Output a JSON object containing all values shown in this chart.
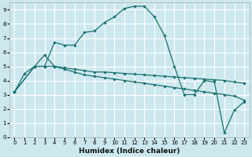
{
  "xlabel": "Humidex (Indice chaleur)",
  "bg_color": "#cce8ee",
  "grid_color": "#ffffff",
  "line_color": "#1a7070",
  "xlim": [
    -0.5,
    23.5
  ],
  "ylim": [
    0,
    9.5
  ],
  "xticks": [
    0,
    1,
    2,
    3,
    4,
    5,
    6,
    7,
    8,
    9,
    10,
    11,
    12,
    13,
    14,
    15,
    16,
    17,
    18,
    19,
    20,
    21,
    22,
    23
  ],
  "yticks": [
    0,
    1,
    2,
    3,
    4,
    5,
    6,
    7,
    8,
    9
  ],
  "line1_x": [
    0,
    1,
    2,
    3,
    4,
    5,
    6,
    7,
    8,
    9,
    10,
    11,
    12,
    13,
    14,
    15,
    16,
    17,
    18,
    19,
    20,
    21,
    22,
    23
  ],
  "line1_y": [
    3.2,
    4.5,
    5.0,
    5.0,
    6.7,
    6.5,
    6.5,
    7.4,
    7.5,
    8.1,
    8.5,
    9.1,
    9.25,
    9.25,
    8.5,
    7.2,
    5.0,
    3.0,
    3.0,
    4.0,
    3.9,
    0.3,
    1.9,
    2.5
  ],
  "line2_x": [
    0,
    2,
    3,
    4,
    5,
    6,
    7,
    8,
    9,
    10,
    11,
    12,
    13,
    14,
    15,
    16,
    17,
    18,
    19,
    20,
    21,
    22,
    23
  ],
  "line2_y": [
    3.2,
    5.0,
    5.8,
    5.0,
    4.9,
    4.8,
    4.7,
    4.6,
    4.6,
    4.55,
    4.5,
    4.45,
    4.4,
    4.35,
    4.3,
    4.25,
    4.2,
    4.15,
    4.1,
    4.05,
    4.0,
    3.9,
    3.8
  ],
  "line3_x": [
    0,
    2,
    3,
    4,
    5,
    6,
    7,
    8,
    9,
    10,
    11,
    12,
    13,
    14,
    15,
    16,
    17,
    18,
    19,
    20,
    21,
    22,
    23
  ],
  "line3_y": [
    3.2,
    5.0,
    5.0,
    5.0,
    4.8,
    4.6,
    4.4,
    4.3,
    4.2,
    4.1,
    4.0,
    3.9,
    3.8,
    3.7,
    3.6,
    3.5,
    3.4,
    3.3,
    3.2,
    3.1,
    3.0,
    2.9,
    2.6
  ],
  "xlabel_fontsize": 6.5,
  "tick_fontsize": 5.0
}
